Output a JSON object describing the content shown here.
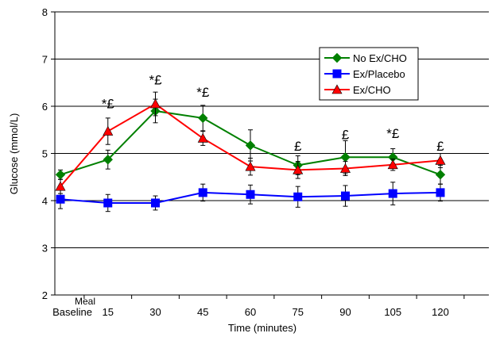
{
  "chart_data": {
    "type": "line",
    "x_categories": [
      "Baseline",
      "15",
      "30",
      "45",
      "60",
      "75",
      "90",
      "105",
      "120"
    ],
    "meal_label": "Meal",
    "xlabel": "Time (minutes)",
    "ylabel": "Glucose (mmol/L)",
    "ylim": [
      2,
      8
    ],
    "y_ticks": [
      "2",
      "3",
      "4",
      "5",
      "6",
      "7",
      "8"
    ],
    "grid": "horizontal",
    "legend_position": "upper-right",
    "series": [
      {
        "name": "No Ex/CHO",
        "color": "#008000",
        "marker": "diamond",
        "values": [
          4.55,
          4.87,
          5.9,
          5.75,
          5.17,
          4.75,
          4.92,
          4.92,
          4.55
        ],
        "errors": [
          0.1,
          0.2,
          0.25,
          0.27,
          0.33,
          0.2,
          0.35,
          0.18,
          0.2
        ]
      },
      {
        "name": "Ex/Placebo",
        "color": "#0000FF",
        "marker": "square",
        "values": [
          4.03,
          3.95,
          3.95,
          4.17,
          4.13,
          4.08,
          4.1,
          4.15,
          4.17
        ],
        "errors": [
          0.2,
          0.18,
          0.15,
          0.18,
          0.2,
          0.22,
          0.22,
          0.24,
          0.18
        ]
      },
      {
        "name": "Ex/CHO",
        "color": "#FF0000",
        "marker": "triangle",
        "values": [
          4.3,
          5.47,
          6.05,
          5.32,
          4.72,
          4.65,
          4.68,
          4.76,
          4.85
        ],
        "errors": [
          0.15,
          0.28,
          0.25,
          0.15,
          0.18,
          0.18,
          0.15,
          0.12,
          0.15
        ]
      }
    ],
    "annotations": [
      {
        "x_index": 1,
        "text": "*£",
        "y": 5.96
      },
      {
        "x_index": 2,
        "text": "*£",
        "y": 6.46
      },
      {
        "x_index": 3,
        "text": "*£",
        "y": 6.2
      },
      {
        "x_index": 5,
        "text": "£",
        "y": 5.06
      },
      {
        "x_index": 6,
        "text": "£",
        "y": 5.3
      },
      {
        "x_index": 7,
        "text": "*£",
        "y": 5.33
      },
      {
        "x_index": 8,
        "text": "£",
        "y": 5.06
      }
    ]
  }
}
